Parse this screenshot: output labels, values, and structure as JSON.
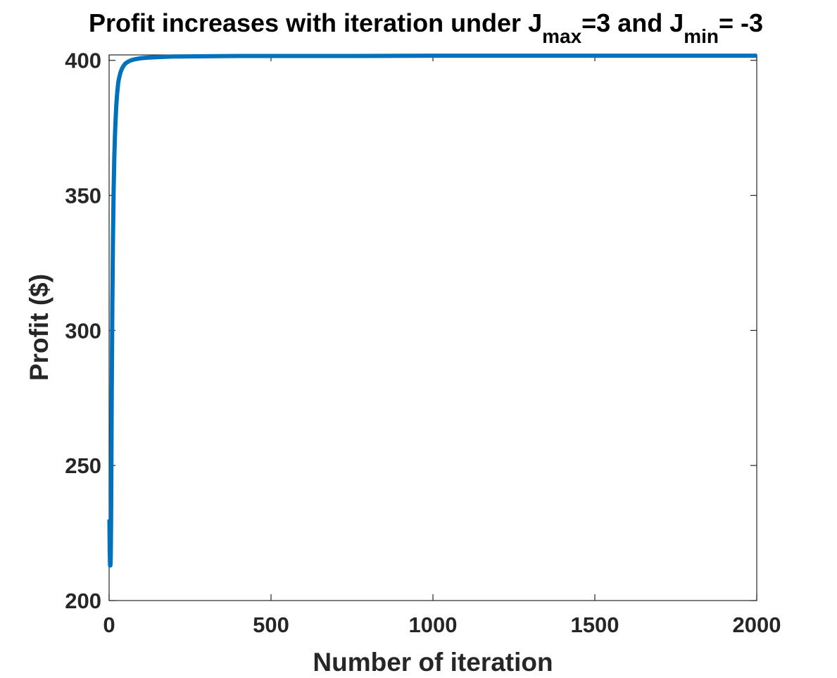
{
  "chart_data": {
    "type": "line",
    "title": {
      "prefix": "Profit increases with iteration under J",
      "sub1": "max",
      "mid": "=3 and J",
      "sub2": "min",
      "suffix": "= -3"
    },
    "xlabel": "Number of iteration",
    "ylabel": "Profit ($)",
    "xlim": [
      0,
      2000
    ],
    "ylim": [
      200,
      402
    ],
    "xticks": [
      0,
      500,
      1000,
      1500,
      2000
    ],
    "yticks": [
      200,
      250,
      300,
      350,
      400
    ],
    "grid": false,
    "series": [
      {
        "color": "#0072BD",
        "x": [
          1,
          2,
          3,
          4,
          5,
          6,
          7,
          8,
          10,
          12,
          14,
          16,
          18,
          20,
          22,
          25,
          28,
          30,
          35,
          40,
          45,
          50,
          60,
          70,
          80,
          100,
          120,
          150,
          200,
          300,
          400,
          500,
          700,
          1000,
          1500,
          2000
        ],
        "y": [
          230,
          218,
          213,
          213,
          216,
          228,
          250,
          275,
          310,
          335,
          352,
          364,
          372,
          378,
          383,
          388,
          391.5,
          393,
          395.5,
          397,
          398,
          398.8,
          399.6,
          400.1,
          400.4,
          400.8,
          401.0,
          401.2,
          401.4,
          401.5,
          401.6,
          401.6,
          401.6,
          401.7,
          401.7,
          401.7
        ]
      }
    ]
  }
}
